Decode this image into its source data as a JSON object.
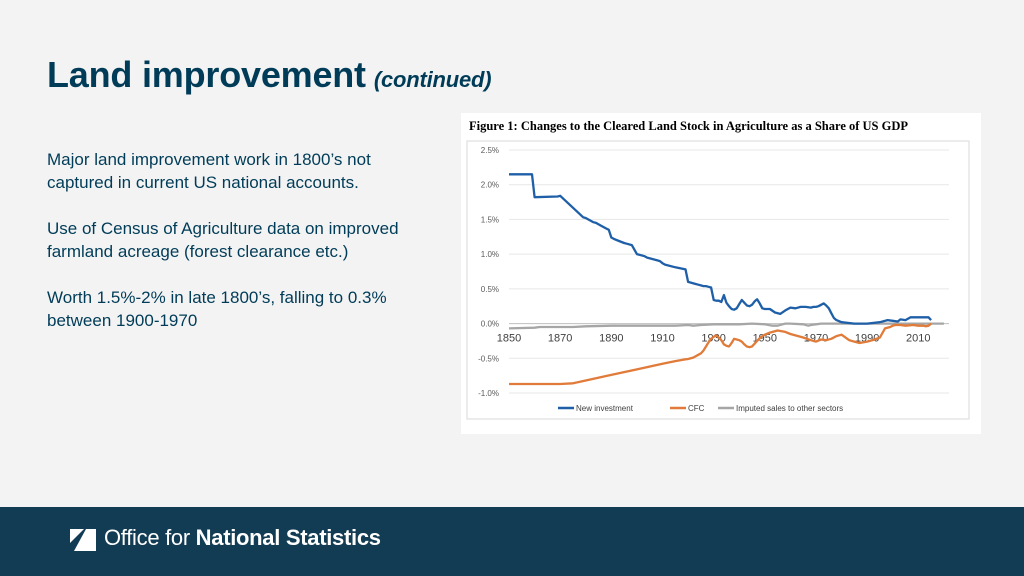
{
  "slide": {
    "title": "Land improvement",
    "title_suffix": "(continued)",
    "paragraphs": [
      "Major land improvement work in 1800’s not captured in current US national accounts.",
      "Use of Census of Agriculture data on improved farmland acreage (forest clearance etc.)",
      "Worth 1.5%-2% in late 1800’s, falling to 0.3% between 1900-1970"
    ]
  },
  "footer": {
    "logo_light": "Office for",
    "logo_bold": "National Statistics"
  },
  "chart_data": {
    "type": "line",
    "title": "Figure 1: Changes to the Cleared Land Stock in Agriculture as a Share of US GDP",
    "xlabel": "",
    "ylabel": "",
    "xlim": [
      1850,
      2022
    ],
    "ylim": [
      -1.0,
      2.5
    ],
    "x_ticks": [
      1850,
      1870,
      1890,
      1910,
      1930,
      1950,
      1970,
      1990,
      2010
    ],
    "x_tick_labels": [
      "1850",
      "1870",
      "1890",
      "1910",
      "1930",
      "1950",
      "1970",
      "1990",
      "2010"
    ],
    "y_ticks": [
      2.5,
      2.0,
      1.5,
      1.0,
      0.5,
      0.0,
      -0.5,
      -1.0
    ],
    "y_tick_labels": [
      "2.5%",
      "2.0%",
      "1.5%",
      "1.0%",
      "0.5%",
      "0.0%",
      "-0.5%",
      "-1.0%"
    ],
    "grid": true,
    "legend_position": "bottom",
    "series": [
      {
        "name": "New investment",
        "color": "#1f5fa8",
        "x": [
          1850,
          1859,
          1860,
          1869,
          1870,
          1879,
          1880,
          1883,
          1884,
          1886,
          1888,
          1889,
          1890,
          1891,
          1893,
          1895,
          1896,
          1898,
          1900,
          1903,
          1904,
          1906,
          1908,
          1909,
          1910,
          1911,
          1915,
          1919,
          1920,
          1923,
          1924,
          1925,
          1926,
          1927,
          1928,
          1929,
          1930,
          1931,
          1932,
          1933,
          1934,
          1935,
          1936,
          1937,
          1938,
          1939,
          1940,
          1941,
          1942,
          1943,
          1944,
          1945,
          1946,
          1947,
          1948,
          1949,
          1950,
          1952,
          1954,
          1956,
          1958,
          1960,
          1962,
          1964,
          1966,
          1968,
          1969,
          1970,
          1971,
          1972,
          1973,
          1974,
          1975,
          1976,
          1977,
          1978,
          1980,
          1985,
          1990,
          1995,
          1998,
          2000,
          2002,
          2003,
          2005,
          2007,
          2010,
          2013,
          2014,
          2015
        ],
        "y": [
          2.15,
          2.15,
          1.82,
          1.83,
          1.84,
          1.53,
          1.52,
          1.46,
          1.45,
          1.41,
          1.37,
          1.35,
          1.24,
          1.22,
          1.19,
          1.16,
          1.15,
          1.13,
          1.0,
          0.97,
          0.95,
          0.93,
          0.91,
          0.9,
          0.87,
          0.85,
          0.81,
          0.78,
          0.6,
          0.57,
          0.56,
          0.55,
          0.54,
          0.54,
          0.53,
          0.52,
          0.34,
          0.33,
          0.33,
          0.31,
          0.41,
          0.3,
          0.25,
          0.21,
          0.2,
          0.22,
          0.28,
          0.34,
          0.3,
          0.26,
          0.25,
          0.27,
          0.32,
          0.35,
          0.29,
          0.22,
          0.21,
          0.21,
          0.16,
          0.14,
          0.19,
          0.23,
          0.22,
          0.24,
          0.24,
          0.23,
          0.24,
          0.24,
          0.25,
          0.27,
          0.29,
          0.26,
          0.22,
          0.15,
          0.08,
          0.05,
          0.02,
          0.0,
          0.0,
          0.02,
          0.05,
          0.04,
          0.03,
          0.06,
          0.05,
          0.09,
          0.09,
          0.09,
          0.09,
          0.05
        ]
      },
      {
        "name": "CFC",
        "color": "#e07b39",
        "x": [
          1850,
          1860,
          1870,
          1875,
          1880,
          1890,
          1900,
          1910,
          1915,
          1918,
          1920,
          1922,
          1923,
          1924,
          1925,
          1926,
          1927,
          1928,
          1929,
          1930,
          1931,
          1932,
          1933,
          1934,
          1935,
          1936,
          1937,
          1938,
          1939,
          1940,
          1941,
          1942,
          1943,
          1944,
          1945,
          1946,
          1947,
          1948,
          1949,
          1950,
          1952,
          1955,
          1958,
          1960,
          1965,
          1968,
          1970,
          1972,
          1974,
          1976,
          1978,
          1980,
          1983,
          1985,
          1987,
          1990,
          1993,
          1995,
          1997,
          1999,
          2000,
          2001,
          2003,
          2005,
          2008,
          2010,
          2012,
          2013,
          2014,
          2015
        ],
        "y": [
          -0.87,
          -0.87,
          -0.87,
          -0.86,
          -0.82,
          -0.74,
          -0.66,
          -0.58,
          -0.54,
          -0.52,
          -0.51,
          -0.49,
          -0.47,
          -0.45,
          -0.43,
          -0.39,
          -0.33,
          -0.27,
          -0.22,
          -0.19,
          -0.17,
          -0.2,
          -0.24,
          -0.3,
          -0.32,
          -0.33,
          -0.28,
          -0.22,
          -0.23,
          -0.24,
          -0.26,
          -0.3,
          -0.33,
          -0.34,
          -0.33,
          -0.29,
          -0.25,
          -0.21,
          -0.18,
          -0.16,
          -0.13,
          -0.1,
          -0.12,
          -0.15,
          -0.2,
          -0.24,
          -0.26,
          -0.23,
          -0.24,
          -0.22,
          -0.18,
          -0.16,
          -0.24,
          -0.26,
          -0.28,
          -0.26,
          -0.23,
          -0.2,
          -0.07,
          -0.05,
          -0.03,
          -0.02,
          -0.02,
          -0.03,
          -0.02,
          -0.03,
          -0.03,
          -0.04,
          -0.03,
          0.0
        ]
      },
      {
        "name": "Imputed sales to other sectors",
        "color": "#a6a6a6",
        "x": [
          1850,
          1860,
          1862,
          1870,
          1875,
          1880,
          1890,
          1900,
          1910,
          1915,
          1920,
          1922,
          1925,
          1930,
          1940,
          1945,
          1950,
          1953,
          1955,
          1957,
          1958,
          1960,
          1965,
          1967,
          1968,
          1970,
          1972,
          1980,
          1990,
          2000,
          2010,
          2020
        ],
        "y": [
          -0.07,
          -0.06,
          -0.05,
          -0.05,
          -0.05,
          -0.04,
          -0.03,
          -0.03,
          -0.03,
          -0.03,
          -0.02,
          -0.03,
          -0.02,
          -0.01,
          -0.01,
          0.0,
          -0.01,
          -0.03,
          -0.03,
          -0.01,
          0.0,
          0.0,
          -0.01,
          -0.03,
          -0.02,
          -0.01,
          0.0,
          0.0,
          0.0,
          0.0,
          0.0,
          0.0
        ]
      }
    ]
  }
}
